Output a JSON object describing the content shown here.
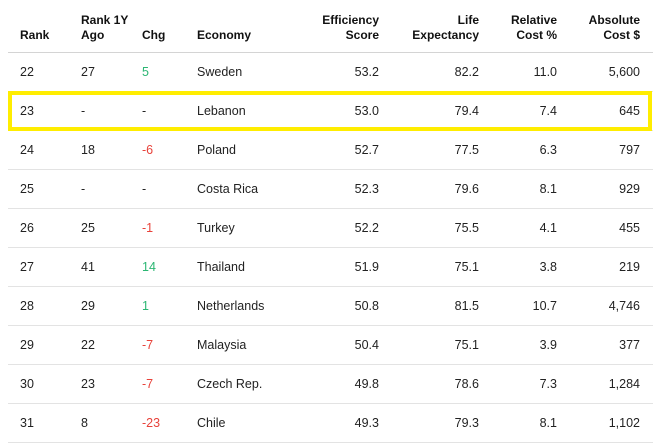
{
  "chart_data": {
    "type": "table",
    "columns": [
      "Rank",
      "Rank 1Y Ago",
      "Chg",
      "Economy",
      "Efficiency Score",
      "Life Expectancy",
      "Relative Cost %",
      "Absolute Cost $"
    ],
    "rows": [
      {
        "rank": "22",
        "ago": "27",
        "chg": "5",
        "chg_sign": "pos",
        "economy": "Sweden",
        "efficiency": "53.2",
        "life": "82.2",
        "relative": "11.0",
        "absolute": "5,600"
      },
      {
        "rank": "23",
        "ago": "-",
        "chg": "-",
        "chg_sign": "none",
        "economy": "Lebanon",
        "efficiency": "53.0",
        "life": "79.4",
        "relative": "7.4",
        "absolute": "645"
      },
      {
        "rank": "24",
        "ago": "18",
        "chg": "-6",
        "chg_sign": "neg",
        "economy": "Poland",
        "efficiency": "52.7",
        "life": "77.5",
        "relative": "6.3",
        "absolute": "797"
      },
      {
        "rank": "25",
        "ago": "-",
        "chg": "-",
        "chg_sign": "none",
        "economy": "Costa Rica",
        "efficiency": "52.3",
        "life": "79.6",
        "relative": "8.1",
        "absolute": "929"
      },
      {
        "rank": "26",
        "ago": "25",
        "chg": "-1",
        "chg_sign": "neg",
        "economy": "Turkey",
        "efficiency": "52.2",
        "life": "75.5",
        "relative": "4.1",
        "absolute": "455"
      },
      {
        "rank": "27",
        "ago": "41",
        "chg": "14",
        "chg_sign": "pos",
        "economy": "Thailand",
        "efficiency": "51.9",
        "life": "75.1",
        "relative": "3.8",
        "absolute": "219"
      },
      {
        "rank": "28",
        "ago": "29",
        "chg": "1",
        "chg_sign": "pos",
        "economy": "Netherlands",
        "efficiency": "50.8",
        "life": "81.5",
        "relative": "10.7",
        "absolute": "4,746"
      },
      {
        "rank": "29",
        "ago": "22",
        "chg": "-7",
        "chg_sign": "neg",
        "economy": "Malaysia",
        "efficiency": "50.4",
        "life": "75.1",
        "relative": "3.9",
        "absolute": "377"
      },
      {
        "rank": "30",
        "ago": "23",
        "chg": "-7",
        "chg_sign": "neg",
        "economy": "Czech Rep.",
        "efficiency": "49.8",
        "life": "78.6",
        "relative": "7.3",
        "absolute": "1,284"
      },
      {
        "rank": "31",
        "ago": "8",
        "chg": "-23",
        "chg_sign": "neg",
        "economy": "Chile",
        "efficiency": "49.3",
        "life": "79.3",
        "relative": "8.1",
        "absolute": "1,102"
      }
    ],
    "highlighted_economy": "Lebanon"
  },
  "colors": {
    "positive": "#2bb673",
    "negative": "#e8423a",
    "highlight": "#ffed00"
  }
}
